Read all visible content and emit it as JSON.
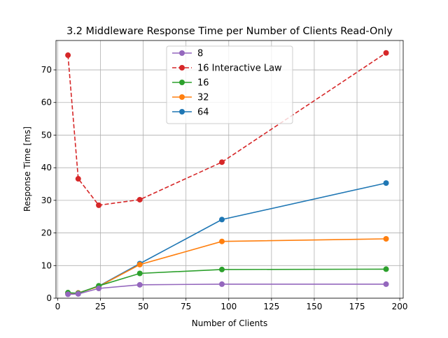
{
  "chart_data": {
    "type": "line",
    "title": "3.2 Middleware Response Time per Number of Clients Read-Only",
    "xlabel": "Number of Clients",
    "ylabel": "Response Time [ms]",
    "xlim": [
      -1,
      202
    ],
    "ylim": [
      0,
      79
    ],
    "x_ticks": [
      0,
      25,
      50,
      75,
      100,
      125,
      150,
      175,
      200
    ],
    "y_ticks": [
      0,
      10,
      20,
      30,
      40,
      50,
      60,
      70
    ],
    "grid": true,
    "legend_position": "top-center",
    "series": [
      {
        "name": "8",
        "color": "#9467bd",
        "dashed": false,
        "x": [
          6,
          12,
          24,
          48,
          96,
          192
        ],
        "y": [
          1.2,
          1.3,
          3.0,
          4.1,
          4.3,
          4.3
        ]
      },
      {
        "name": "16 Interactive Law",
        "color": "#d62728",
        "dashed": true,
        "x": [
          6,
          12,
          24,
          48,
          96,
          192
        ],
        "y": [
          74.5,
          36.6,
          28.5,
          30.2,
          41.7,
          75.2
        ]
      },
      {
        "name": "16",
        "color": "#2ca02c",
        "dashed": false,
        "x": [
          6,
          12,
          24,
          48,
          96,
          192
        ],
        "y": [
          1.7,
          1.5,
          3.8,
          7.6,
          8.8,
          8.9
        ]
      },
      {
        "name": "32",
        "color": "#ff7f0e",
        "dashed": false,
        "x": [
          6,
          12,
          24,
          48,
          96,
          192
        ],
        "y": [
          1.5,
          1.6,
          3.6,
          10.3,
          17.4,
          18.2
        ]
      },
      {
        "name": "64",
        "color": "#1f77b4",
        "dashed": false,
        "x": [
          6,
          12,
          24,
          48,
          96,
          192
        ],
        "y": [
          1.4,
          1.6,
          3.7,
          10.6,
          24.1,
          35.3
        ]
      }
    ]
  }
}
